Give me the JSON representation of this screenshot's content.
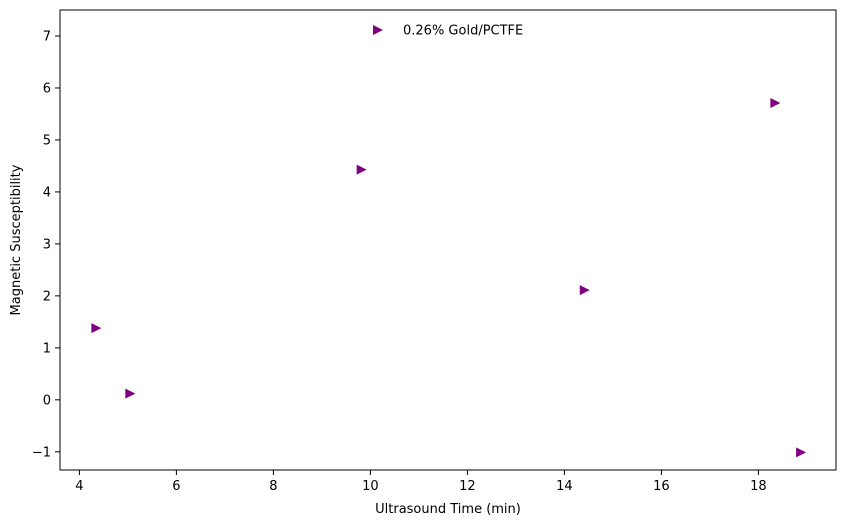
{
  "chart_data": {
    "type": "scatter",
    "title": "",
    "xlabel": "Ultrasound Time (min)",
    "ylabel": "Magnetic Susceptibility",
    "xlim": [
      3.6,
      19.6
    ],
    "ylim": [
      -1.35,
      7.5
    ],
    "xticks": [
      4,
      6,
      8,
      10,
      12,
      14,
      16,
      18
    ],
    "yticks": [
      -1,
      0,
      1,
      2,
      3,
      4,
      5,
      6,
      7
    ],
    "xtick_labels": [
      "4",
      "6",
      "8",
      "10",
      "12",
      "14",
      "16",
      "18"
    ],
    "ytick_labels": [
      "−1",
      "0",
      "1",
      "2",
      "3",
      "4",
      "5",
      "6",
      "7"
    ],
    "grid": false,
    "legend": {
      "placement": "top-center",
      "frame": false
    },
    "series": [
      {
        "name": "0.26% Gold/PCTFE",
        "marker": "triangle-right",
        "color": "#800080",
        "points": [
          {
            "x": 4.35,
            "y": 1.38
          },
          {
            "x": 5.05,
            "y": 0.12
          },
          {
            "x": 9.82,
            "y": 4.43
          },
          {
            "x": 14.42,
            "y": 2.11
          },
          {
            "x": 18.35,
            "y": 5.71
          },
          {
            "x": 18.88,
            "y": -1.01
          }
        ]
      }
    ]
  }
}
